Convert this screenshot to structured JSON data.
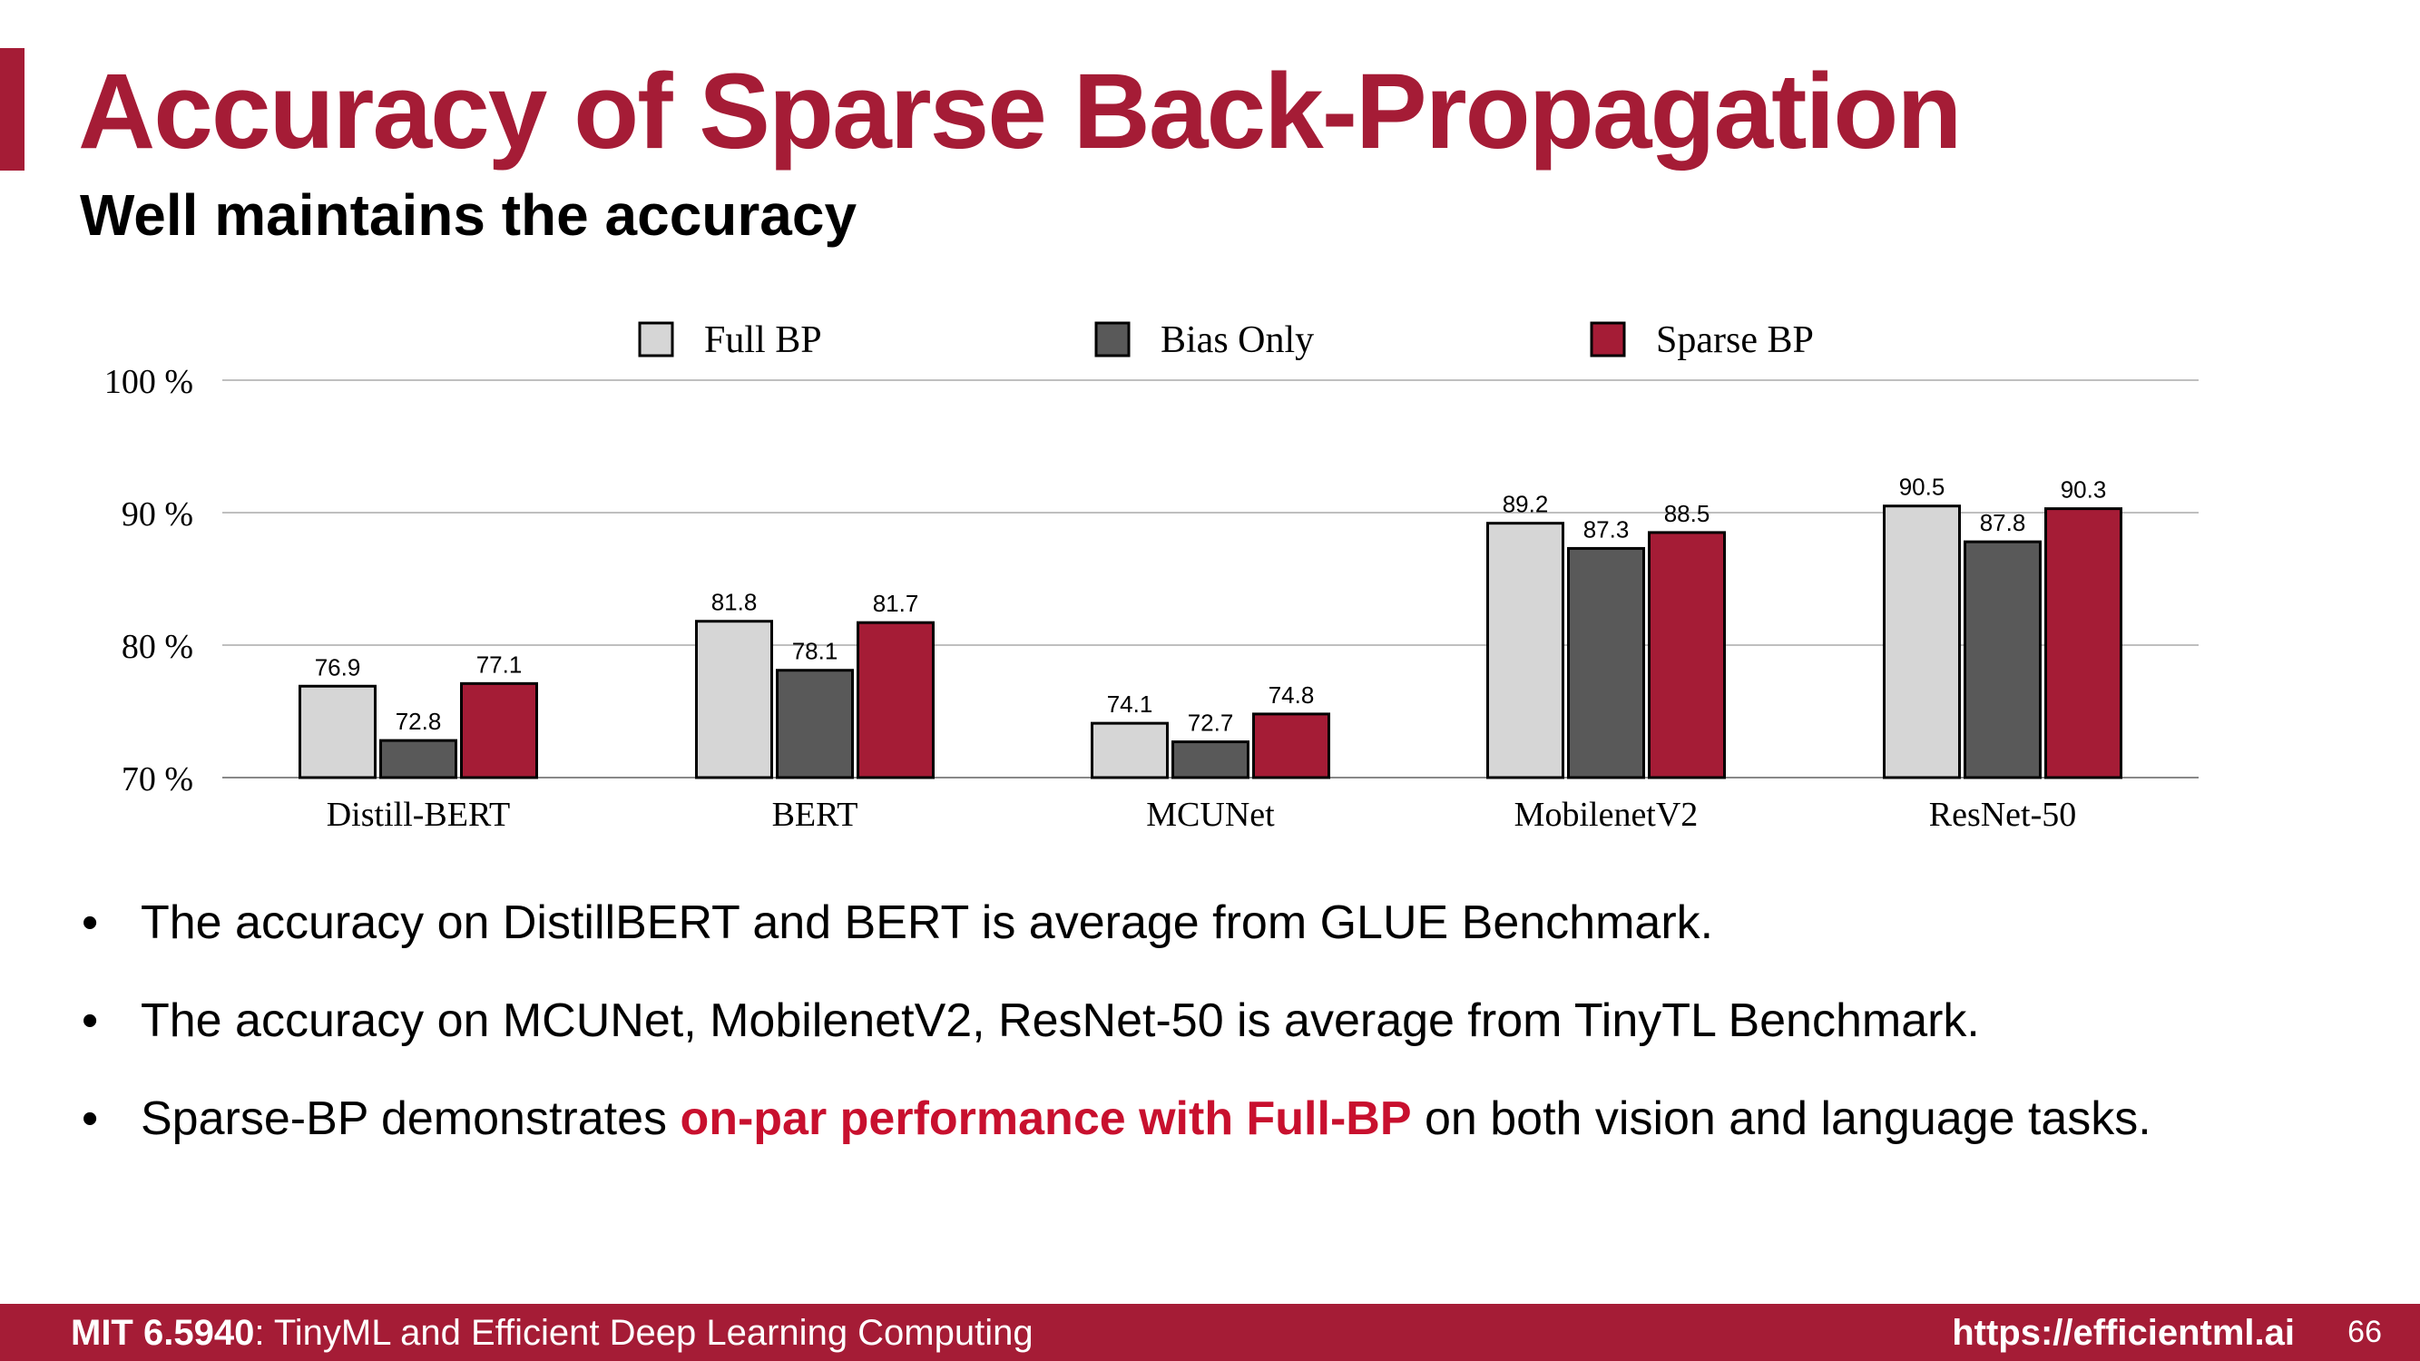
{
  "colors": {
    "accent": "#a51c36",
    "highlight": "#c8102e",
    "full_bp": "#d6d6d6",
    "bias_only": "#595959",
    "sparse_bp": "#a51c36",
    "grid": "#bfbfbf",
    "footer_bg": "#a51c36"
  },
  "slide": {
    "title": "Accuracy of Sparse Back-Propagation",
    "subtitle": "Well maintains the accuracy"
  },
  "chart_data": {
    "type": "bar",
    "categories": [
      "Distill-BERT",
      "BERT",
      "MCUNet",
      "MobilenetV2",
      "ResNet-50"
    ],
    "series": [
      {
        "name": "Full BP",
        "values": [
          76.9,
          81.8,
          74.1,
          89.2,
          90.5
        ]
      },
      {
        "name": "Bias Only",
        "values": [
          72.8,
          78.1,
          72.7,
          87.3,
          87.8
        ]
      },
      {
        "name": "Sparse BP",
        "values": [
          77.1,
          81.7,
          74.8,
          88.5,
          90.3
        ]
      }
    ],
    "value_labels": [
      [
        "76.9",
        "81.8",
        "74.1",
        "89.2",
        "90.5"
      ],
      [
        "72.8",
        "78.1",
        "72.7",
        "87.3",
        "87.8"
      ],
      [
        "77.1",
        "81.7",
        "74.8",
        "88.5",
        "90.3"
      ]
    ],
    "y_ticks": [
      70,
      80,
      90,
      100
    ],
    "y_tick_labels": [
      "70 %",
      "80 %",
      "90 %",
      "100 %"
    ],
    "ylim": [
      70,
      100
    ],
    "grid": true,
    "legend_position": "top"
  },
  "bullets": {
    "items": [
      {
        "text": "The accuracy on DistillBERT and BERT is average from GLUE Benchmark."
      },
      {
        "text": "The accuracy on MCUNet, MobilenetV2, ResNet-50 is average from TinyTL Benchmark."
      },
      {
        "text_before": "Sparse-BP demonstrates ",
        "highlight": "on-par performance with Full-BP",
        "text_after": " on both vision and language tasks."
      }
    ]
  },
  "footer": {
    "course_code": "MIT 6.5940",
    "course_rest": ": TinyML and Efficient Deep Learning Computing",
    "url": "https://efficientml.ai",
    "page_number": "66"
  }
}
